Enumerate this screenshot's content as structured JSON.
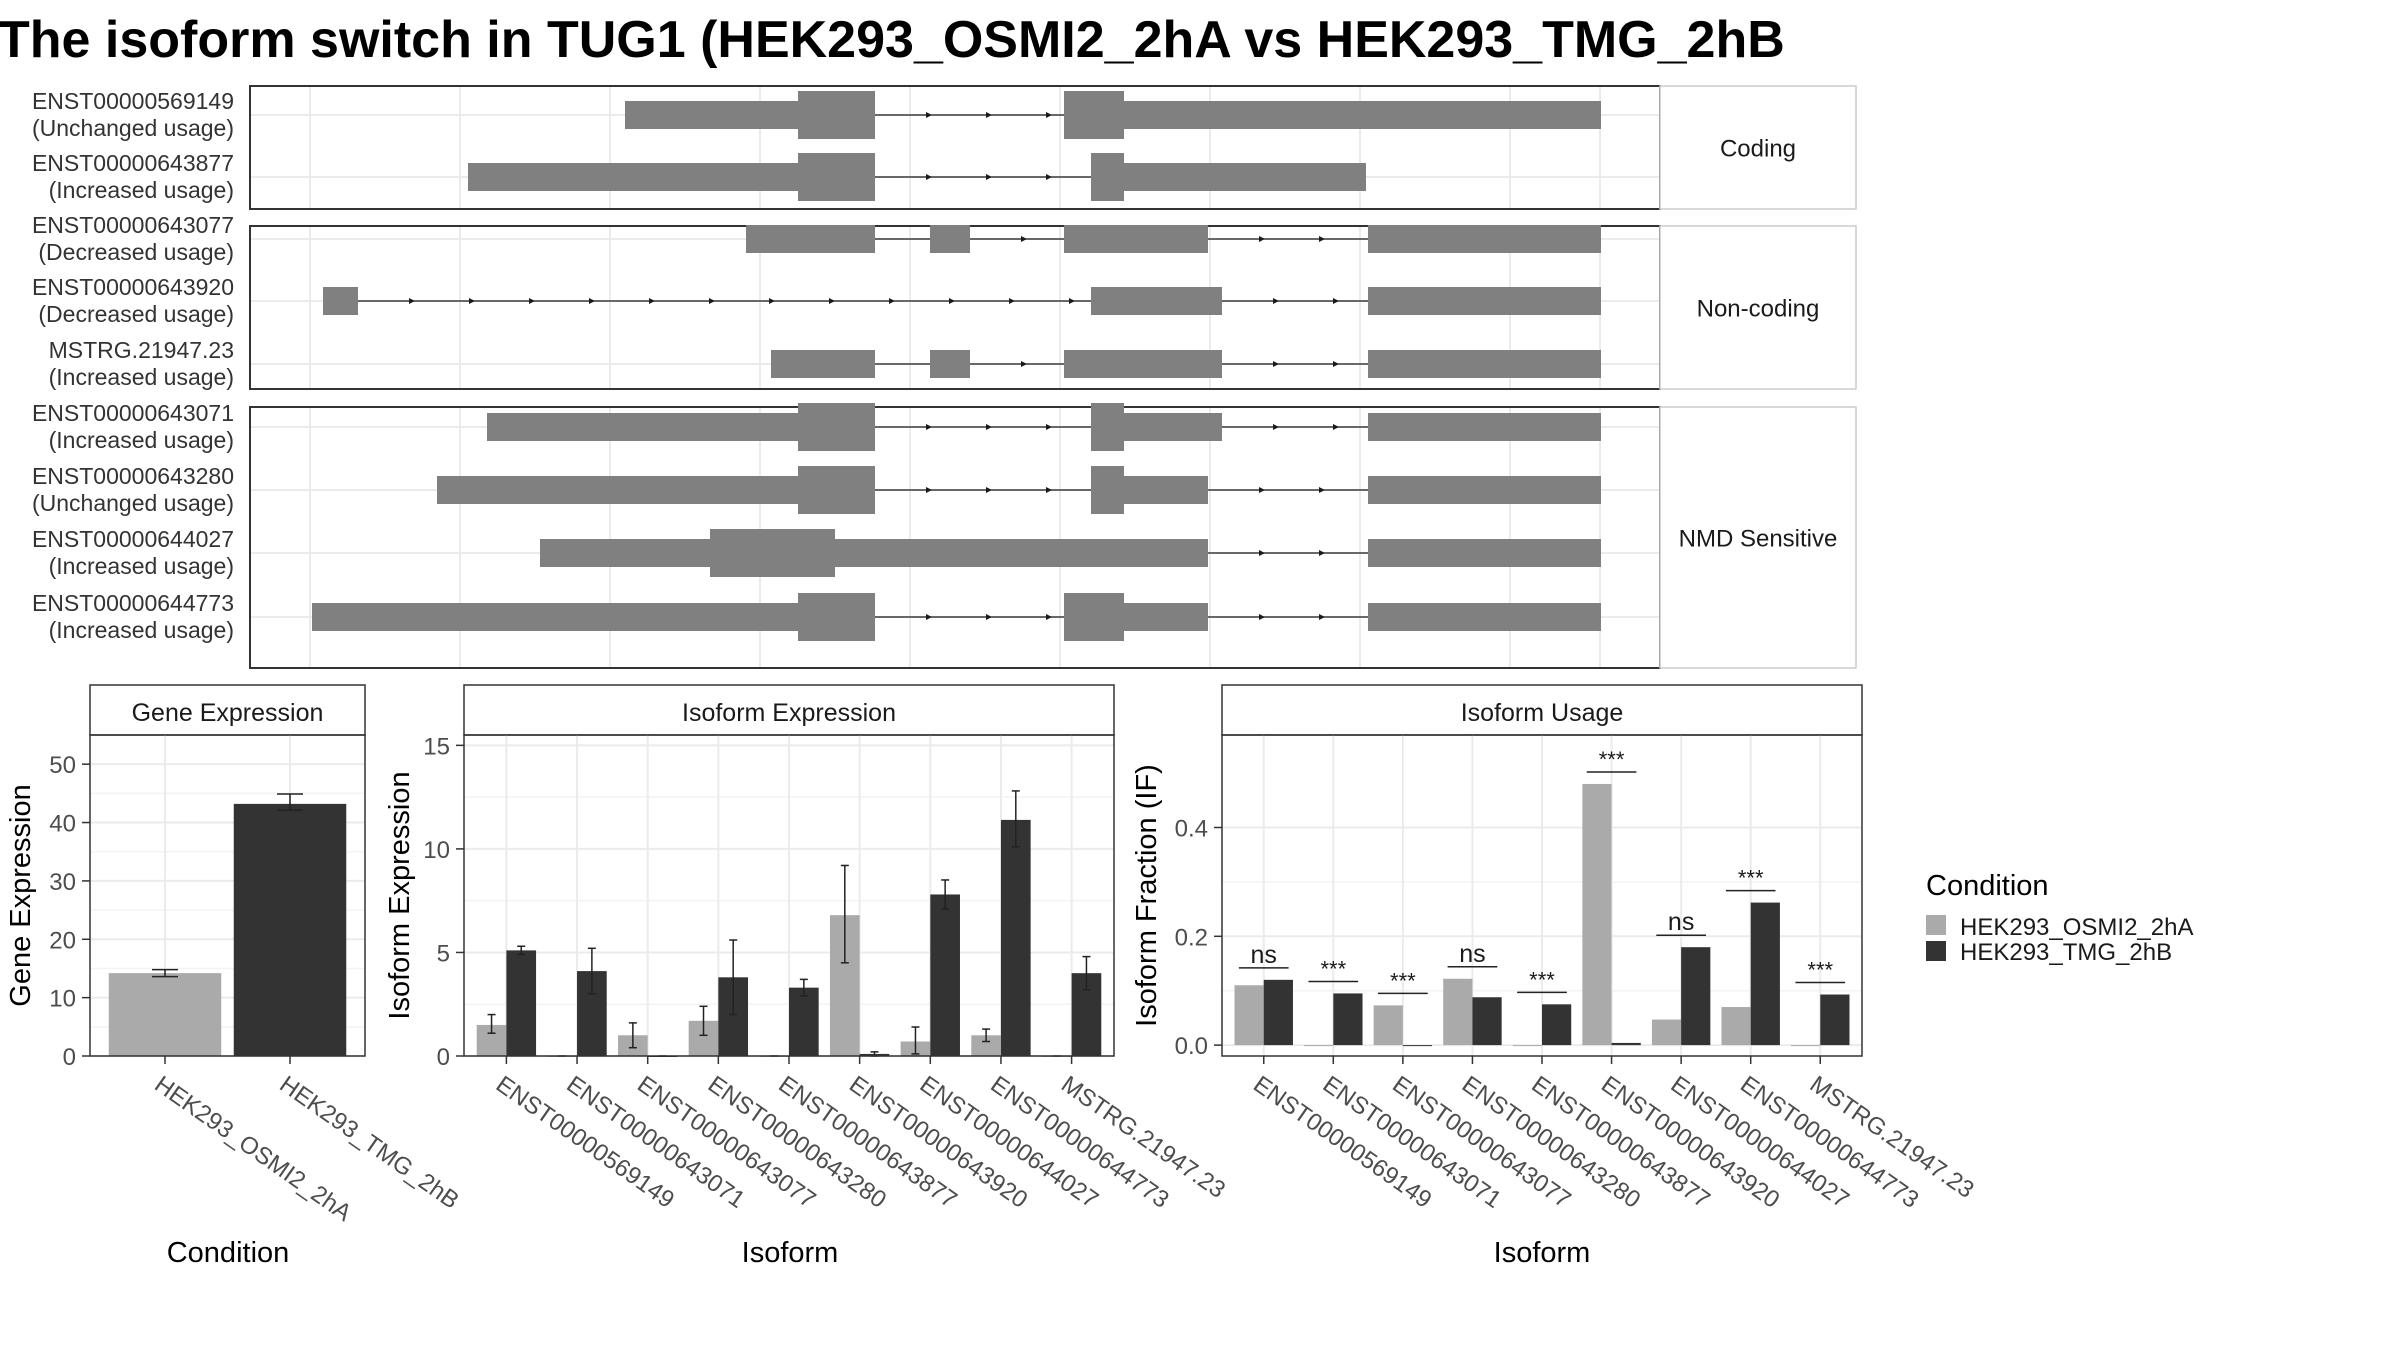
{
  "title": "The isoform switch in TUG1 (HEK293_OSMI2_2hA vs HEK293_TMG_2hB",
  "colors": {
    "condition_a": "#AAAAAA",
    "condition_b": "#333333",
    "structure": "#808080",
    "grid": "#EBEBEB",
    "border": "#333333"
  },
  "structure": {
    "groups": [
      {
        "label": "Coding",
        "transcripts": [
          {
            "id": "ENST00000569149",
            "usage": "(Unchanged usage)"
          },
          {
            "id": "ENST00000643877",
            "usage": "(Increased usage)"
          }
        ]
      },
      {
        "label": "Non-coding",
        "transcripts": [
          {
            "id": "ENST00000643077",
            "usage": "(Decreased usage)"
          },
          {
            "id": "ENST00000643920",
            "usage": "(Decreased usage)"
          },
          {
            "id": "MSTRG.21947.23",
            "usage": "(Increased usage)"
          }
        ]
      },
      {
        "label": "NMD Sensitive",
        "transcripts": [
          {
            "id": "ENST00000643071",
            "usage": "(Increased usage)"
          },
          {
            "id": "ENST00000643280",
            "usage": "(Unchanged usage)"
          },
          {
            "id": "ENST00000644027",
            "usage": "(Increased usage)"
          },
          {
            "id": "ENST00000644773",
            "usage": "(Increased usage)"
          }
        ]
      }
    ]
  },
  "chart_data": [
    {
      "type": "bar",
      "title": "Gene Expression",
      "xlabel": "Condition",
      "ylabel": "Gene Expression",
      "categories": [
        "HEK293_OSMI2_2hA",
        "HEK293_TMG_2hB"
      ],
      "values": [
        14.2,
        43.2
      ],
      "errors": [
        [
          13.6,
          14.8
        ],
        [
          42.1,
          44.9
        ]
      ],
      "ylim": [
        0,
        55
      ],
      "yticks": [
        0,
        10,
        20,
        30,
        40,
        50
      ],
      "grid": true
    },
    {
      "type": "bar",
      "title": "Isoform Expression",
      "xlabel": "Isoform",
      "ylabel": "Isoform Expression",
      "categories": [
        "ENST00000569149",
        "ENST00000643071",
        "ENST00000643077",
        "ENST00000643280",
        "ENST00000643877",
        "ENST00000643920",
        "ENST00000644027",
        "ENST00000644773",
        "MSTRG.21947.23"
      ],
      "series": [
        {
          "name": "HEK293_OSMI2_2hA",
          "values": [
            1.5,
            0,
            1.0,
            1.7,
            0,
            6.8,
            0.7,
            1.0,
            0
          ],
          "errors": [
            [
              1.1,
              2.0
            ],
            [
              0,
              0
            ],
            [
              0.4,
              1.6
            ],
            [
              1.0,
              2.4
            ],
            [
              0,
              0
            ],
            [
              4.5,
              9.2
            ],
            [
              0.1,
              1.4
            ],
            [
              0.7,
              1.3
            ],
            [
              0,
              0
            ]
          ]
        },
        {
          "name": "HEK293_TMG_2hB",
          "values": [
            5.1,
            4.1,
            0,
            3.8,
            3.3,
            0.1,
            7.8,
            11.4,
            4.0
          ],
          "errors": [
            [
              4.9,
              5.3
            ],
            [
              3.0,
              5.2
            ],
            [
              0,
              0
            ],
            [
              2.0,
              5.6
            ],
            [
              2.9,
              3.7
            ],
            [
              0,
              0.2
            ],
            [
              7.1,
              8.5
            ],
            [
              10.1,
              12.8
            ],
            [
              3.2,
              4.8
            ]
          ]
        }
      ],
      "ylim": [
        0,
        15.5
      ],
      "yticks": [
        0,
        5,
        10,
        15
      ],
      "grid": true
    },
    {
      "type": "bar",
      "title": "Isoform Usage",
      "xlabel": "Isoform",
      "ylabel": "Isoform Fraction (IF)",
      "categories": [
        "ENST00000569149",
        "ENST00000643071",
        "ENST00000643077",
        "ENST00000643280",
        "ENST00000643877",
        "ENST00000643920",
        "ENST00000644027",
        "ENST00000644773",
        "MSTRG.21947.23"
      ],
      "series": [
        {
          "name": "HEK293_OSMI2_2hA",
          "values": [
            0.11,
            0,
            0.073,
            0.122,
            0,
            0.48,
            0.047,
            0.07,
            0
          ]
        },
        {
          "name": "HEK293_TMG_2hB",
          "values": [
            0.12,
            0.095,
            0,
            0.088,
            0.075,
            0.004,
            0.18,
            0.262,
            0.093
          ]
        }
      ],
      "significance": [
        "ns",
        "***",
        "***",
        "ns",
        "***",
        "***",
        "ns",
        "***",
        "***"
      ],
      "ylim": [
        -0.02,
        0.57
      ],
      "yticks": [
        0.0,
        0.2,
        0.4
      ],
      "grid": true
    }
  ],
  "legend": {
    "title": "Condition",
    "entries": [
      "HEK293_OSMI2_2hA",
      "HEK293_TMG_2hB"
    ],
    "position": "right"
  }
}
